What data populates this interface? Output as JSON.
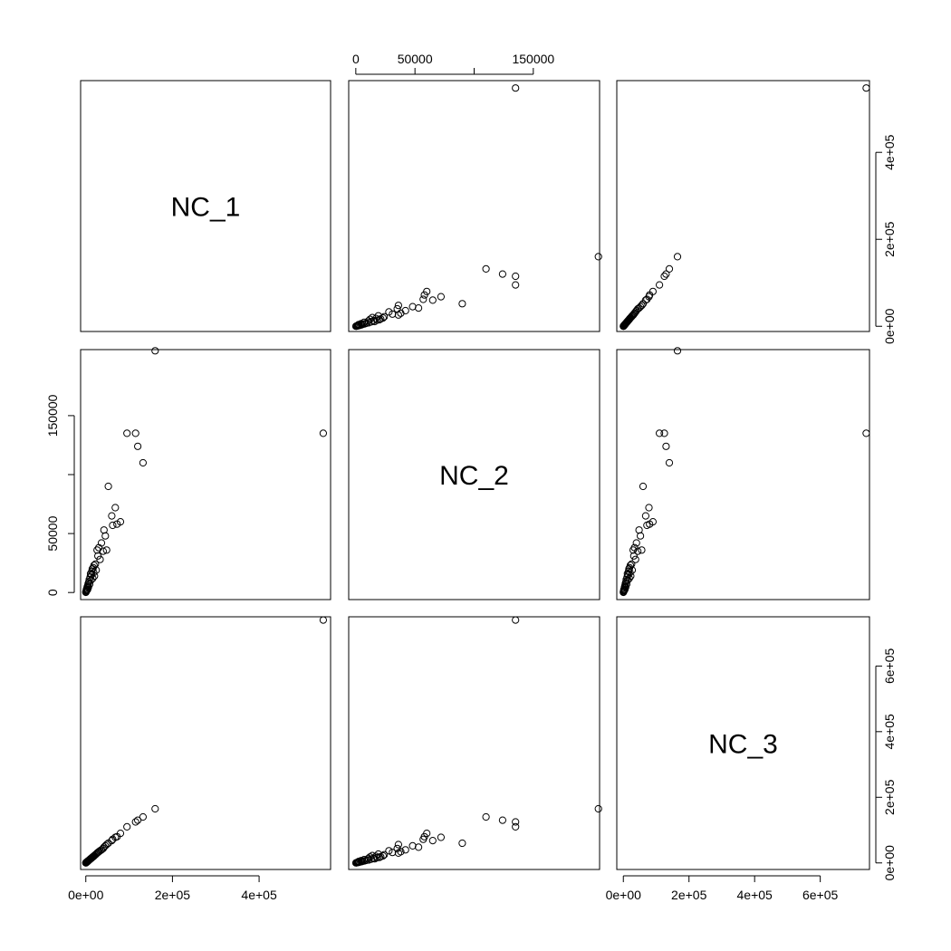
{
  "chart_data": {
    "type": "scatter",
    "variables": [
      "NC_1",
      "NC_2",
      "NC_3"
    ],
    "axes": {
      "NC_1": {
        "ticks": [
          0,
          200000,
          400000
        ],
        "labels": [
          "0e+00",
          "2e+05",
          "4e+05"
        ],
        "range": [
          -12000,
          565000
        ]
      },
      "NC_2": {
        "ticks": [
          0,
          50000,
          100000,
          150000
        ],
        "labels": [
          "0",
          "50000",
          "",
          "150000"
        ],
        "range": [
          -6000,
          206000
        ]
      },
      "NC_3": {
        "ticks": [
          0,
          200000,
          400000,
          600000
        ],
        "labels": [
          "0e+00",
          "2e+05",
          "4e+05",
          "6e+05"
        ],
        "range": [
          -20000,
          750000
        ]
      }
    },
    "points": [
      [
        100,
        150,
        200
      ],
      [
        300,
        500,
        400
      ],
      [
        600,
        800,
        700
      ],
      [
        1000,
        1500,
        1200
      ],
      [
        1500,
        2500,
        1800
      ],
      [
        2000,
        3000,
        2500
      ],
      [
        2500,
        1800,
        3000
      ],
      [
        3000,
        4000,
        3500
      ],
      [
        3500,
        5000,
        4000
      ],
      [
        4000,
        2500,
        4500
      ],
      [
        5000,
        6000,
        5500
      ],
      [
        5500,
        7500,
        6200
      ],
      [
        6000,
        4500,
        7000
      ],
      [
        7000,
        9000,
        8000
      ],
      [
        8000,
        11000,
        9000
      ],
      [
        9000,
        7000,
        10000
      ],
      [
        10000,
        13000,
        11500
      ],
      [
        11000,
        16000,
        12500
      ],
      [
        12000,
        10500,
        13500
      ],
      [
        13000,
        15000,
        14500
      ],
      [
        14000,
        18000,
        16000
      ],
      [
        15000,
        20000,
        17000
      ],
      [
        16000,
        12000,
        18000
      ],
      [
        17000,
        21000,
        19000
      ],
      [
        18000,
        17000,
        20000
      ],
      [
        19000,
        23000,
        21500
      ],
      [
        20000,
        14000,
        22500
      ],
      [
        22000,
        24000,
        25000
      ],
      [
        24000,
        19000,
        27000
      ],
      [
        26000,
        36000,
        30000
      ],
      [
        28000,
        31000,
        32000
      ],
      [
        30000,
        38000,
        34000
      ],
      [
        33000,
        28000,
        37000
      ],
      [
        36000,
        42000,
        40000
      ],
      [
        40000,
        35000,
        44000
      ],
      [
        42000,
        53000,
        48000
      ],
      [
        45000,
        48000,
        52000
      ],
      [
        48000,
        36000,
        56000
      ],
      [
        52000,
        90000,
        60000
      ],
      [
        60000,
        65000,
        68000
      ],
      [
        62000,
        57000,
        72000
      ],
      [
        68000,
        72000,
        78000
      ],
      [
        72000,
        58000,
        80000
      ],
      [
        80000,
        60000,
        90000
      ],
      [
        95000,
        135000,
        110000
      ],
      [
        115000,
        135000,
        125000
      ],
      [
        120000,
        124000,
        130000
      ],
      [
        132000,
        110000,
        140000
      ],
      [
        160000,
        205000,
        165000
      ],
      [
        548000,
        135000,
        740000
      ]
    ]
  }
}
